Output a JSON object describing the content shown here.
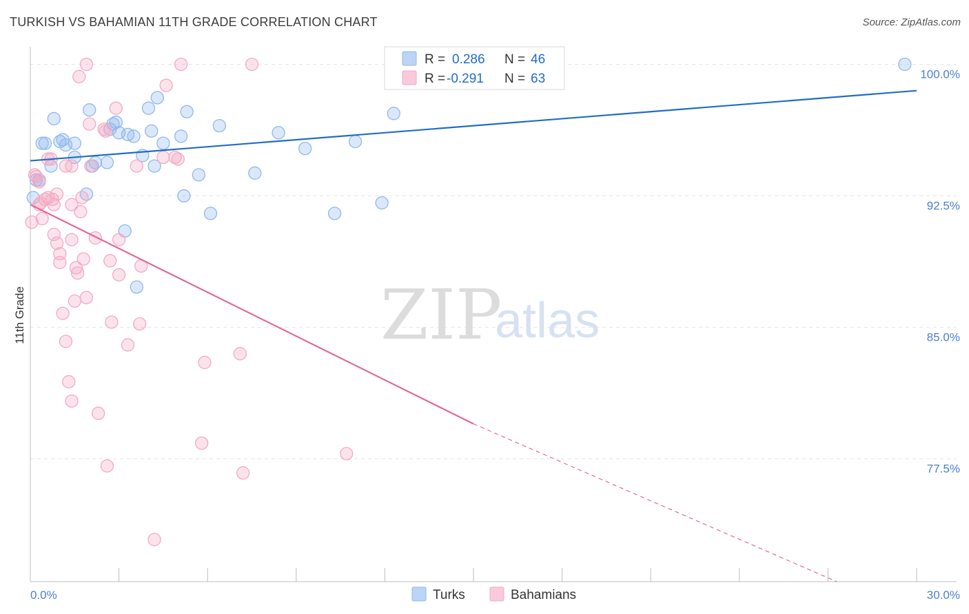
{
  "title": "TURKISH VS BAHAMIAN 11TH GRADE CORRELATION CHART",
  "source": "Source: ZipAtlas.com",
  "watermark": {
    "zip": "ZIP",
    "atlas": "atlas"
  },
  "chart_data": {
    "type": "scatter",
    "title": "TURKISH VS BAHAMIAN 11TH GRADE CORRELATION CHART",
    "xlabel": "",
    "ylabel": "11th Grade",
    "xlim": [
      0,
      30
    ],
    "ylim": [
      70.5,
      101
    ],
    "x_tick_labels": [
      "0.0%",
      "30.0%"
    ],
    "y_ticks": [
      100,
      92.5,
      85,
      77.5
    ],
    "y_tick_labels": [
      "100.0%",
      "92.5%",
      "85.0%",
      "77.5%"
    ],
    "grid": "horizontal dashed",
    "legend_position": "top-center",
    "series": [
      {
        "name": "Turks",
        "color": "#8fb8ec",
        "line_color": "#1f6cc9",
        "r": "0.286",
        "n": "46",
        "trend": {
          "x": [
            0,
            30
          ],
          "y": [
            94.5,
            98.5
          ]
        },
        "points": [
          [
            0.1,
            92.4
          ],
          [
            0.3,
            93.4
          ],
          [
            0.4,
            95.5
          ],
          [
            0.5,
            95.5
          ],
          [
            0.7,
            94.2
          ],
          [
            0.8,
            96.9
          ],
          [
            1.0,
            95.6
          ],
          [
            1.1,
            95.7
          ],
          [
            1.2,
            95.4
          ],
          [
            1.5,
            94.7
          ],
          [
            1.5,
            95.5
          ],
          [
            1.9,
            92.6
          ],
          [
            2.0,
            97.4
          ],
          [
            2.1,
            94.2
          ],
          [
            2.2,
            94.4
          ],
          [
            2.6,
            94.4
          ],
          [
            2.8,
            96.6
          ],
          [
            2.9,
            96.7
          ],
          [
            3.0,
            96.1
          ],
          [
            3.2,
            90.5
          ],
          [
            3.3,
            96.0
          ],
          [
            3.5,
            95.9
          ],
          [
            3.6,
            87.3
          ],
          [
            3.8,
            94.8
          ],
          [
            4.0,
            97.5
          ],
          [
            4.1,
            96.2
          ],
          [
            4.2,
            94.2
          ],
          [
            4.3,
            98.1
          ],
          [
            4.5,
            95.5
          ],
          [
            5.1,
            95.9
          ],
          [
            5.2,
            92.5
          ],
          [
            5.3,
            97.3
          ],
          [
            5.7,
            93.7
          ],
          [
            6.1,
            91.5
          ],
          [
            6.4,
            96.5
          ],
          [
            7.6,
            93.8
          ],
          [
            8.4,
            96.1
          ],
          [
            9.3,
            95.2
          ],
          [
            10.3,
            91.5
          ],
          [
            11.0,
            95.6
          ],
          [
            11.9,
            92.1
          ],
          [
            12.3,
            97.2
          ],
          [
            12.5,
            100.1
          ],
          [
            29.6,
            100.0
          ],
          [
            0.2,
            93.4
          ],
          [
            2.7,
            96.3
          ]
        ]
      },
      {
        "name": "Bahamians",
        "color": "#f4a9c2",
        "line_color": "#e0699a",
        "r": "-0.291",
        "n": "63",
        "trend": {
          "x": [
            0,
            15
          ],
          "y": [
            92.0,
            79.5
          ]
        },
        "trend_dashed": {
          "x": [
            15,
            27.3
          ],
          "y": [
            79.5,
            70.5
          ]
        },
        "points": [
          [
            0.05,
            91.0
          ],
          [
            0.2,
            93.6
          ],
          [
            0.3,
            93.3
          ],
          [
            0.35,
            92.1
          ],
          [
            0.4,
            91.2
          ],
          [
            0.5,
            92.3
          ],
          [
            0.6,
            92.4
          ],
          [
            0.6,
            94.6
          ],
          [
            0.7,
            94.6
          ],
          [
            0.75,
            92.3
          ],
          [
            0.8,
            92.0
          ],
          [
            0.9,
            92.6
          ],
          [
            0.8,
            90.3
          ],
          [
            0.9,
            89.8
          ],
          [
            1.0,
            88.7
          ],
          [
            1.0,
            89.2
          ],
          [
            1.1,
            85.8
          ],
          [
            1.2,
            84.2
          ],
          [
            1.3,
            81.9
          ],
          [
            1.4,
            94.2
          ],
          [
            1.4,
            92.0
          ],
          [
            1.4,
            90.0
          ],
          [
            1.5,
            86.5
          ],
          [
            1.4,
            80.8
          ],
          [
            1.55,
            88.4
          ],
          [
            1.6,
            88.1
          ],
          [
            1.65,
            99.3
          ],
          [
            1.7,
            91.6
          ],
          [
            1.75,
            92.4
          ],
          [
            1.8,
            88.9
          ],
          [
            1.9,
            86.7
          ],
          [
            1.9,
            100.0
          ],
          [
            2.0,
            96.6
          ],
          [
            2.05,
            94.2
          ],
          [
            2.2,
            90.1
          ],
          [
            2.3,
            80.1
          ],
          [
            2.5,
            96.3
          ],
          [
            2.55,
            96.2
          ],
          [
            2.6,
            77.1
          ],
          [
            2.7,
            88.8
          ],
          [
            2.75,
            85.3
          ],
          [
            2.9,
            97.5
          ],
          [
            3.0,
            88.0
          ],
          [
            3.0,
            90.0
          ],
          [
            3.3,
            84.0
          ],
          [
            3.6,
            94.2
          ],
          [
            3.7,
            85.2
          ],
          [
            3.75,
            88.5
          ],
          [
            4.2,
            72.9
          ],
          [
            4.5,
            94.7
          ],
          [
            4.6,
            98.8
          ],
          [
            4.9,
            94.7
          ],
          [
            5.0,
            94.6
          ],
          [
            5.1,
            100.0
          ],
          [
            5.8,
            78.4
          ],
          [
            5.9,
            83.0
          ],
          [
            7.1,
            83.5
          ],
          [
            7.2,
            76.7
          ],
          [
            7.5,
            100.0
          ],
          [
            10.7,
            77.8
          ],
          [
            0.15,
            93.7
          ],
          [
            1.2,
            94.2
          ],
          [
            0.3,
            92.0
          ]
        ]
      }
    ]
  },
  "legend": {
    "r_label": "R =",
    "n_label": "N =",
    "entries": [
      {
        "name": "Turks",
        "r": "0.286",
        "n": "46"
      },
      {
        "name": "Bahamians",
        "r": "-0.291",
        "n": "63"
      }
    ]
  }
}
